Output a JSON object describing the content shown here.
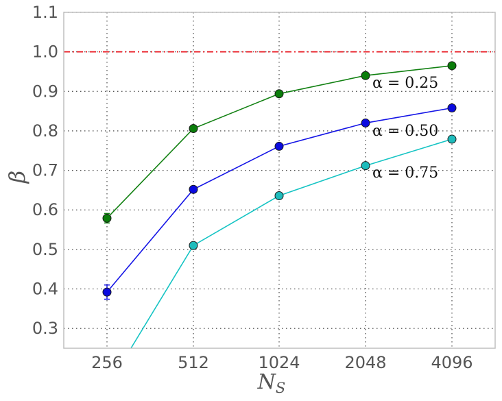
{
  "chart_data": {
    "type": "line",
    "title": "",
    "xlabel": "N",
    "xlabel_sub": "S",
    "ylabel": "β",
    "categories": [
      "256",
      "512",
      "1024",
      "2048",
      "4096"
    ],
    "yticks": [
      "0.3",
      "0.4",
      "0.5",
      "0.6",
      "0.7",
      "0.8",
      "0.9",
      "1.0",
      "1.1"
    ],
    "ylim": [
      0.25,
      1.1
    ],
    "grid": true,
    "reference_line": {
      "y": 1.0,
      "color": "#e8141c",
      "style": "dash-dot"
    },
    "series": [
      {
        "color": "#128112",
        "marker_color": "#0b7d0b",
        "values": [
          0.579,
          0.806,
          0.894,
          0.94,
          0.965
        ],
        "errors": [
          0.012,
          0,
          0,
          0,
          0
        ],
        "annotation": "α = 0.25"
      },
      {
        "color": "#1616e6",
        "marker_color": "#0a0ae0",
        "values": [
          0.392,
          0.652,
          0.761,
          0.82,
          0.858
        ],
        "errors": [
          0.018,
          0,
          0,
          0,
          0
        ],
        "annotation": "α = 0.50"
      },
      {
        "color": "#16c4c4",
        "marker_color": "#1ebcbc",
        "values": [
          0.15,
          0.51,
          0.636,
          0.712,
          0.779
        ],
        "errors": [
          0,
          0,
          0,
          0,
          0
        ],
        "annotation": "α = 0.75"
      }
    ]
  }
}
